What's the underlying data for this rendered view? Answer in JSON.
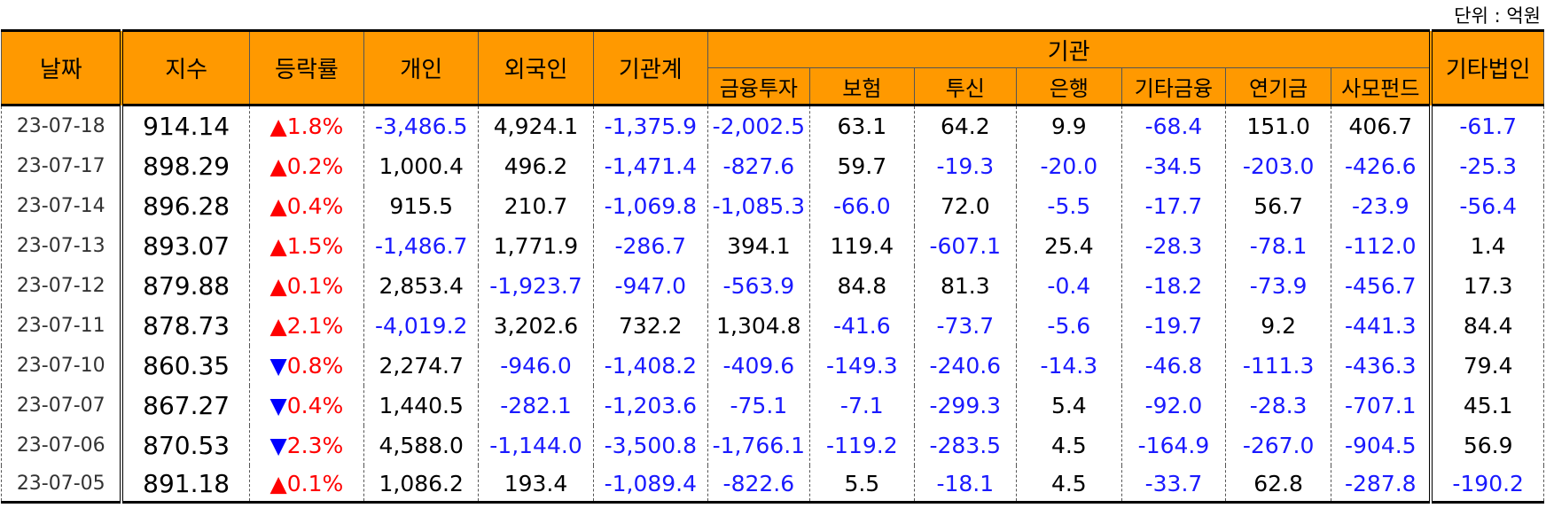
{
  "unit_label": "단위 : 억원",
  "headers": {
    "date": "날짜",
    "index": "지수",
    "change": "등락률",
    "individual": "개인",
    "foreign": "외국인",
    "inst_total": "기관계",
    "institution": "기관",
    "sub": [
      "금융투자",
      "보험",
      "투신",
      "은행",
      "기타금융",
      "연기금",
      "사모펀드"
    ],
    "other_corp": "기타법인"
  },
  "rows": [
    {
      "date": "23-07-18",
      "index": "914.14",
      "dir": "up",
      "rate": "1.8%",
      "values": [
        "-3,486.5",
        "4,924.1",
        "-1,375.9",
        "-2,002.5",
        "63.1",
        "64.2",
        "9.9",
        "-68.4",
        "151.0",
        "406.7",
        "-61.7"
      ]
    },
    {
      "date": "23-07-17",
      "index": "898.29",
      "dir": "up",
      "rate": "0.2%",
      "values": [
        "1,000.4",
        "496.2",
        "-1,471.4",
        "-827.6",
        "59.7",
        "-19.3",
        "-20.0",
        "-34.5",
        "-203.0",
        "-426.6",
        "-25.3"
      ]
    },
    {
      "date": "23-07-14",
      "index": "896.28",
      "dir": "up",
      "rate": "0.4%",
      "values": [
        "915.5",
        "210.7",
        "-1,069.8",
        "-1,085.3",
        "-66.0",
        "72.0",
        "-5.5",
        "-17.7",
        "56.7",
        "-23.9",
        "-56.4"
      ]
    },
    {
      "date": "23-07-13",
      "index": "893.07",
      "dir": "up",
      "rate": "1.5%",
      "values": [
        "-1,486.7",
        "1,771.9",
        "-286.7",
        "394.1",
        "119.4",
        "-607.1",
        "25.4",
        "-28.3",
        "-78.1",
        "-112.0",
        "1.4"
      ]
    },
    {
      "date": "23-07-12",
      "index": "879.88",
      "dir": "up",
      "rate": "0.1%",
      "values": [
        "2,853.4",
        "-1,923.7",
        "-947.0",
        "-563.9",
        "84.8",
        "81.3",
        "-0.4",
        "-18.2",
        "-73.9",
        "-456.7",
        "17.3"
      ]
    },
    {
      "date": "23-07-11",
      "index": "878.73",
      "dir": "up",
      "rate": "2.1%",
      "values": [
        "-4,019.2",
        "3,202.6",
        "732.2",
        "1,304.8",
        "-41.6",
        "-73.7",
        "-5.6",
        "-19.7",
        "9.2",
        "-441.3",
        "84.4"
      ]
    },
    {
      "date": "23-07-10",
      "index": "860.35",
      "dir": "down",
      "rate": "0.8%",
      "values": [
        "2,274.7",
        "-946.0",
        "-1,408.2",
        "-409.6",
        "-149.3",
        "-240.6",
        "-14.3",
        "-46.8",
        "-111.3",
        "-436.3",
        "79.4"
      ]
    },
    {
      "date": "23-07-07",
      "index": "867.27",
      "dir": "down",
      "rate": "0.4%",
      "values": [
        "1,440.5",
        "-282.1",
        "-1,203.6",
        "-75.1",
        "-7.1",
        "-299.3",
        "5.4",
        "-92.0",
        "-28.3",
        "-707.1",
        "45.1"
      ]
    },
    {
      "date": "23-07-06",
      "index": "870.53",
      "dir": "down",
      "rate": "2.3%",
      "values": [
        "4,588.0",
        "-1,144.0",
        "-3,500.8",
        "-1,766.1",
        "-119.2",
        "-283.5",
        "4.5",
        "-164.9",
        "-267.0",
        "-904.5",
        "56.9"
      ]
    },
    {
      "date": "23-07-05",
      "index": "891.18",
      "dir": "up",
      "rate": "0.1%",
      "values": [
        "1,086.2",
        "193.4",
        "-1,089.4",
        "-822.6",
        "5.5",
        "-18.1",
        "4.5",
        "-33.7",
        "62.8",
        "-287.8",
        "-190.2"
      ]
    }
  ],
  "colors": {
    "header_bg": "#ff9900",
    "negative": "#1a1aff",
    "up": "#ff0000",
    "down": "#0000ff"
  }
}
